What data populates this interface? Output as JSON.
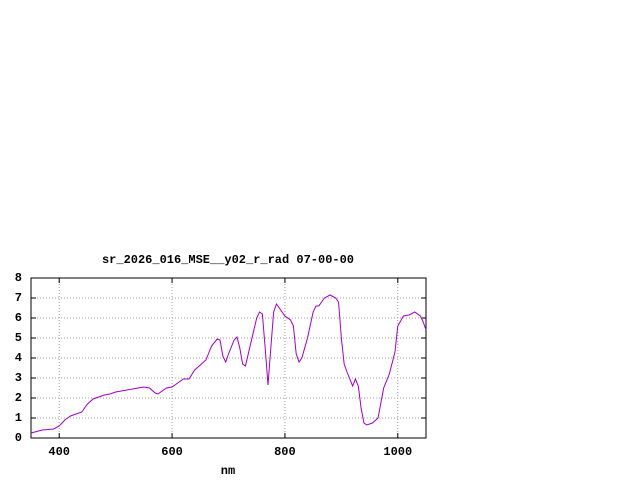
{
  "chart_data": {
    "type": "line",
    "title": "sr_2026_016_MSE__y02_r_rad 07-00-00",
    "xlabel": "nm",
    "xlim": [
      350,
      1050
    ],
    "ylim": [
      0,
      8
    ],
    "xticks": [
      400,
      600,
      800,
      1000
    ],
    "yticks": [
      0,
      1,
      2,
      3,
      4,
      5,
      6,
      7,
      8
    ],
    "grid": true,
    "x": [
      350,
      370,
      390,
      400,
      410,
      420,
      430,
      440,
      450,
      460,
      470,
      480,
      490,
      500,
      510,
      520,
      530,
      540,
      550,
      560,
      570,
      575,
      580,
      590,
      600,
      610,
      620,
      630,
      640,
      650,
      660,
      670,
      680,
      685,
      690,
      695,
      700,
      710,
      715,
      720,
      725,
      730,
      740,
      750,
      755,
      760,
      765,
      770,
      775,
      780,
      785,
      790,
      800,
      810,
      815,
      820,
      825,
      830,
      840,
      850,
      855,
      860,
      870,
      880,
      890,
      895,
      900,
      905,
      910,
      920,
      925,
      930,
      935,
      940,
      945,
      955,
      965,
      975,
      985,
      995,
      1000,
      1010,
      1020,
      1030,
      1040,
      1045,
      1050
    ],
    "series": [
      {
        "color": "#a000c8",
        "values": [
          0.25,
          0.4,
          0.45,
          0.6,
          0.9,
          1.1,
          1.2,
          1.3,
          1.7,
          1.95,
          2.05,
          2.15,
          2.2,
          2.3,
          2.35,
          2.4,
          2.45,
          2.5,
          2.55,
          2.5,
          2.25,
          2.2,
          2.3,
          2.5,
          2.55,
          2.75,
          2.95,
          2.95,
          3.4,
          3.65,
          3.9,
          4.6,
          4.95,
          4.9,
          4.1,
          3.8,
          4.2,
          4.9,
          5.05,
          4.5,
          3.7,
          3.6,
          4.8,
          6.0,
          6.3,
          6.2,
          4.5,
          2.65,
          4.5,
          6.3,
          6.7,
          6.5,
          6.1,
          5.9,
          5.6,
          4.2,
          3.8,
          4.0,
          5.0,
          6.3,
          6.6,
          6.6,
          7.0,
          7.15,
          7.0,
          6.8,
          5.0,
          3.7,
          3.3,
          2.6,
          2.95,
          2.6,
          1.5,
          0.75,
          0.65,
          0.75,
          1.0,
          2.5,
          3.2,
          4.3,
          5.6,
          6.1,
          6.15,
          6.3,
          6.1,
          5.8,
          5.4
        ]
      }
    ]
  }
}
